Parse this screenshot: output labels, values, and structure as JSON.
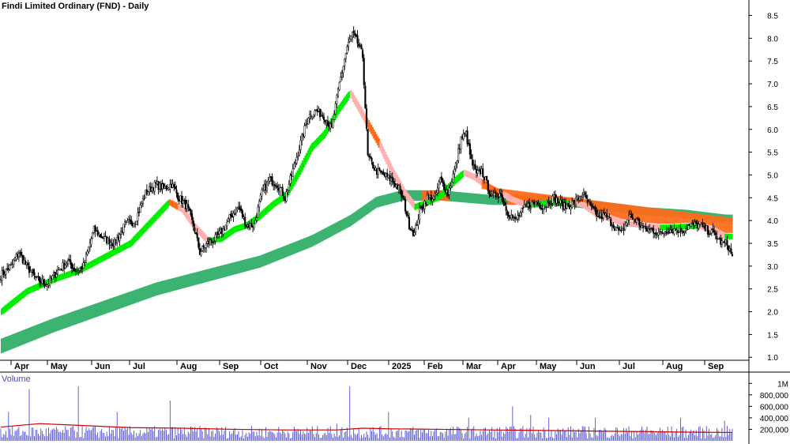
{
  "chart_data": {
    "type": "candlestick",
    "title": "Findi Limited Ordinary (FND) - Daily",
    "price_axis": {
      "ylim": [
        0.9,
        8.7
      ],
      "ticks": [
        "8.5",
        "8.0",
        "7.5",
        "7.0",
        "6.5",
        "6.0",
        "5.5",
        "5.0",
        "4.5",
        "4.0",
        "3.5",
        "3.0",
        "2.5",
        "2.0",
        "1.5",
        "1.0"
      ]
    },
    "x_axis": {
      "ticks": [
        "Apr",
        "May",
        "Jun",
        "Jul",
        "Aug",
        "Sep",
        "Oct",
        "Nov",
        "Dec",
        "2025",
        "Feb",
        "Mar",
        "Apr",
        "May",
        "Jun",
        "Jul",
        "Aug",
        "Sep"
      ]
    },
    "price_key_points": [
      [
        0,
        2.8
      ],
      [
        8,
        3.0
      ],
      [
        14,
        3.3
      ],
      [
        20,
        3.0
      ],
      [
        28,
        2.7
      ],
      [
        36,
        2.6
      ],
      [
        44,
        2.9
      ],
      [
        52,
        3.1
      ],
      [
        58,
        2.9
      ],
      [
        64,
        3.0
      ],
      [
        72,
        3.8
      ],
      [
        80,
        3.6
      ],
      [
        88,
        3.5
      ],
      [
        96,
        3.9
      ],
      [
        104,
        4.0
      ],
      [
        112,
        4.6
      ],
      [
        120,
        4.8
      ],
      [
        126,
        4.7
      ],
      [
        132,
        4.8
      ],
      [
        138,
        4.5
      ],
      [
        144,
        4.3
      ],
      [
        150,
        3.8
      ],
      [
        154,
        3.3
      ],
      [
        160,
        3.5
      ],
      [
        166,
        3.6
      ],
      [
        172,
        3.8
      ],
      [
        178,
        4.1
      ],
      [
        184,
        4.3
      ],
      [
        190,
        3.9
      ],
      [
        196,
        3.9
      ],
      [
        202,
        4.6
      ],
      [
        208,
        4.9
      ],
      [
        214,
        4.8
      ],
      [
        220,
        4.5
      ],
      [
        226,
        5.1
      ],
      [
        232,
        5.7
      ],
      [
        238,
        6.3
      ],
      [
        244,
        6.4
      ],
      [
        250,
        6.3
      ],
      [
        256,
        6.0
      ],
      [
        262,
        7.0
      ],
      [
        268,
        7.8
      ],
      [
        272,
        8.1
      ],
      [
        276,
        7.9
      ],
      [
        280,
        7.6
      ],
      [
        284,
        5.4
      ],
      [
        290,
        5.1
      ],
      [
        296,
        5.0
      ],
      [
        302,
        4.9
      ],
      [
        308,
        4.7
      ],
      [
        312,
        4.4
      ],
      [
        316,
        3.9
      ],
      [
        320,
        3.7
      ],
      [
        324,
        4.2
      ],
      [
        330,
        4.5
      ],
      [
        336,
        4.5
      ],
      [
        340,
        4.9
      ],
      [
        346,
        4.6
      ],
      [
        352,
        5.2
      ],
      [
        356,
        5.8
      ],
      [
        360,
        5.9
      ],
      [
        364,
        5.3
      ],
      [
        368,
        5.0
      ],
      [
        372,
        5.1
      ],
      [
        376,
        4.8
      ],
      [
        380,
        4.5
      ],
      [
        386,
        4.6
      ],
      [
        392,
        4.2
      ],
      [
        398,
        4.0
      ],
      [
        406,
        4.3
      ],
      [
        414,
        4.4
      ],
      [
        420,
        4.3
      ],
      [
        428,
        4.5
      ],
      [
        436,
        4.3
      ],
      [
        444,
        4.4
      ],
      [
        450,
        4.6
      ],
      [
        456,
        4.3
      ],
      [
        462,
        4.1
      ],
      [
        468,
        4.1
      ],
      [
        474,
        3.9
      ],
      [
        480,
        3.7
      ],
      [
        486,
        4.1
      ],
      [
        492,
        4.0
      ],
      [
        498,
        3.8
      ],
      [
        504,
        3.8
      ],
      [
        510,
        3.7
      ],
      [
        516,
        3.8
      ],
      [
        522,
        3.8
      ],
      [
        528,
        3.8
      ],
      [
        534,
        3.9
      ],
      [
        540,
        3.9
      ],
      [
        546,
        3.8
      ],
      [
        552,
        3.7
      ],
      [
        558,
        3.5
      ],
      [
        562,
        3.5
      ],
      [
        566,
        3.2
      ]
    ],
    "fast_ribbon_points": [
      [
        0,
        2.0
      ],
      [
        20,
        2.45
      ],
      [
        40,
        2.7
      ],
      [
        60,
        2.9
      ],
      [
        80,
        3.2
      ],
      [
        100,
        3.5
      ],
      [
        120,
        4.1
      ],
      [
        130,
        4.4
      ],
      [
        140,
        4.25
      ],
      [
        150,
        3.85
      ],
      [
        160,
        3.55
      ],
      [
        170,
        3.6
      ],
      [
        180,
        3.8
      ],
      [
        190,
        3.9
      ],
      [
        200,
        4.1
      ],
      [
        210,
        4.35
      ],
      [
        220,
        4.55
      ],
      [
        230,
        5.05
      ],
      [
        240,
        5.6
      ],
      [
        250,
        5.9
      ],
      [
        260,
        6.4
      ],
      [
        270,
        6.8
      ],
      [
        282,
        6.2
      ],
      [
        292,
        5.7
      ],
      [
        302,
        5.1
      ],
      [
        312,
        4.6
      ],
      [
        320,
        4.3
      ],
      [
        330,
        4.4
      ],
      [
        340,
        4.55
      ],
      [
        350,
        4.85
      ],
      [
        358,
        5.05
      ],
      [
        366,
        4.95
      ],
      [
        376,
        4.75
      ],
      [
        386,
        4.6
      ],
      [
        396,
        4.45
      ],
      [
        406,
        4.35
      ],
      [
        416,
        4.35
      ],
      [
        428,
        4.4
      ],
      [
        440,
        4.4
      ],
      [
        450,
        4.35
      ],
      [
        460,
        4.15
      ],
      [
        470,
        4.05
      ],
      [
        480,
        3.95
      ],
      [
        490,
        3.92
      ],
      [
        500,
        3.87
      ],
      [
        510,
        3.85
      ],
      [
        520,
        3.85
      ],
      [
        530,
        3.87
      ],
      [
        540,
        3.88
      ],
      [
        550,
        3.8
      ],
      [
        560,
        3.65
      ]
    ],
    "slow_ribbon_points": [
      [
        0,
        1.25
      ],
      [
        40,
        1.7
      ],
      [
        80,
        2.1
      ],
      [
        120,
        2.5
      ],
      [
        160,
        2.8
      ],
      [
        200,
        3.1
      ],
      [
        240,
        3.55
      ],
      [
        270,
        4.0
      ],
      [
        290,
        4.4
      ],
      [
        310,
        4.55
      ],
      [
        340,
        4.55
      ],
      [
        360,
        4.5
      ],
      [
        380,
        4.45
      ],
      [
        400,
        4.45
      ],
      [
        420,
        4.45
      ],
      [
        440,
        4.4
      ],
      [
        470,
        4.3
      ],
      [
        500,
        4.2
      ],
      [
        530,
        4.15
      ],
      [
        560,
        4.05
      ]
    ],
    "volume_axis": {
      "label": "Volume",
      "ticks": [
        "1M",
        "800,000",
        "600,000",
        "400,000",
        "200,000"
      ],
      "ylim": [
        0,
        1100000
      ]
    },
    "volume_spikes": [
      [
        6,
        500000
      ],
      [
        22,
        900000
      ],
      [
        60,
        950000
      ],
      [
        90,
        500000
      ],
      [
        131,
        700000
      ],
      [
        260,
        300000
      ],
      [
        270,
        950000
      ],
      [
        300,
        500000
      ],
      [
        362,
        400000
      ],
      [
        396,
        600000
      ],
      [
        410,
        450000
      ],
      [
        424,
        400000
      ],
      [
        460,
        400000
      ],
      [
        500,
        250000
      ],
      [
        526,
        400000
      ],
      [
        560,
        350000
      ]
    ],
    "volume_ma_points": [
      [
        0,
        240000
      ],
      [
        30,
        300000
      ],
      [
        60,
        270000
      ],
      [
        100,
        230000
      ],
      [
        140,
        220000
      ],
      [
        180,
        200000
      ],
      [
        220,
        190000
      ],
      [
        260,
        190000
      ],
      [
        280,
        220000
      ],
      [
        300,
        210000
      ],
      [
        340,
        200000
      ],
      [
        380,
        190000
      ],
      [
        420,
        180000
      ],
      [
        460,
        170000
      ],
      [
        500,
        160000
      ],
      [
        540,
        150000
      ],
      [
        566,
        145000
      ]
    ],
    "colors": {
      "fast_up": "#00ee00",
      "fast_down": "#ffb0b0",
      "slow_up": "#3cb371",
      "cross_warning": "#ff6a1a",
      "candle": "#000000",
      "volume_bar": "#5050d0",
      "volume_ma": "#cc0000"
    }
  }
}
